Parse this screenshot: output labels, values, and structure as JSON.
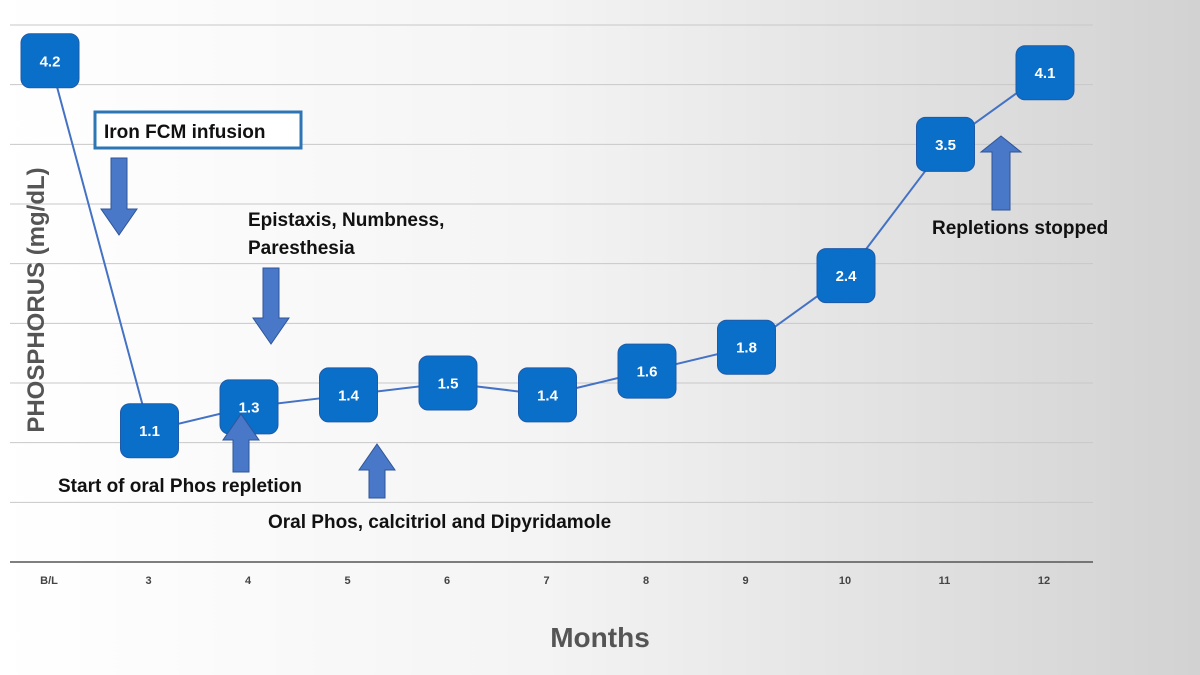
{
  "chart_data": {
    "type": "line",
    "categories": [
      "B/L",
      "3",
      "4",
      "5",
      "6",
      "7",
      "8",
      "9",
      "10",
      "11",
      "12"
    ],
    "values": [
      4.2,
      1.1,
      1.3,
      1.4,
      1.5,
      1.4,
      1.6,
      1.8,
      2.4,
      3.5,
      4.1
    ],
    "data_labels": [
      "4.2",
      "1.1",
      "1.3",
      "1.4",
      "1.5",
      "1.4",
      "1.6",
      "1.8",
      "2.4",
      "3.5",
      "4.1"
    ],
    "xlabel": "Months",
    "ylabel": "PHOSPHORUS (mg/dL)",
    "grid": true,
    "series_color": "#4472c4",
    "marker_color": "#0a6fc9",
    "annotations": [
      {
        "text": "Iron FCM infusion",
        "boxed": true
      },
      {
        "text_lines": [
          "Epistaxis, Numbness,",
          "Paresthesia"
        ]
      },
      {
        "text": "Start of oral Phos repletion"
      },
      {
        "text": "Oral Phos, calcitriol and Dipyridamole"
      },
      {
        "text": "Repletions stopped"
      }
    ]
  }
}
